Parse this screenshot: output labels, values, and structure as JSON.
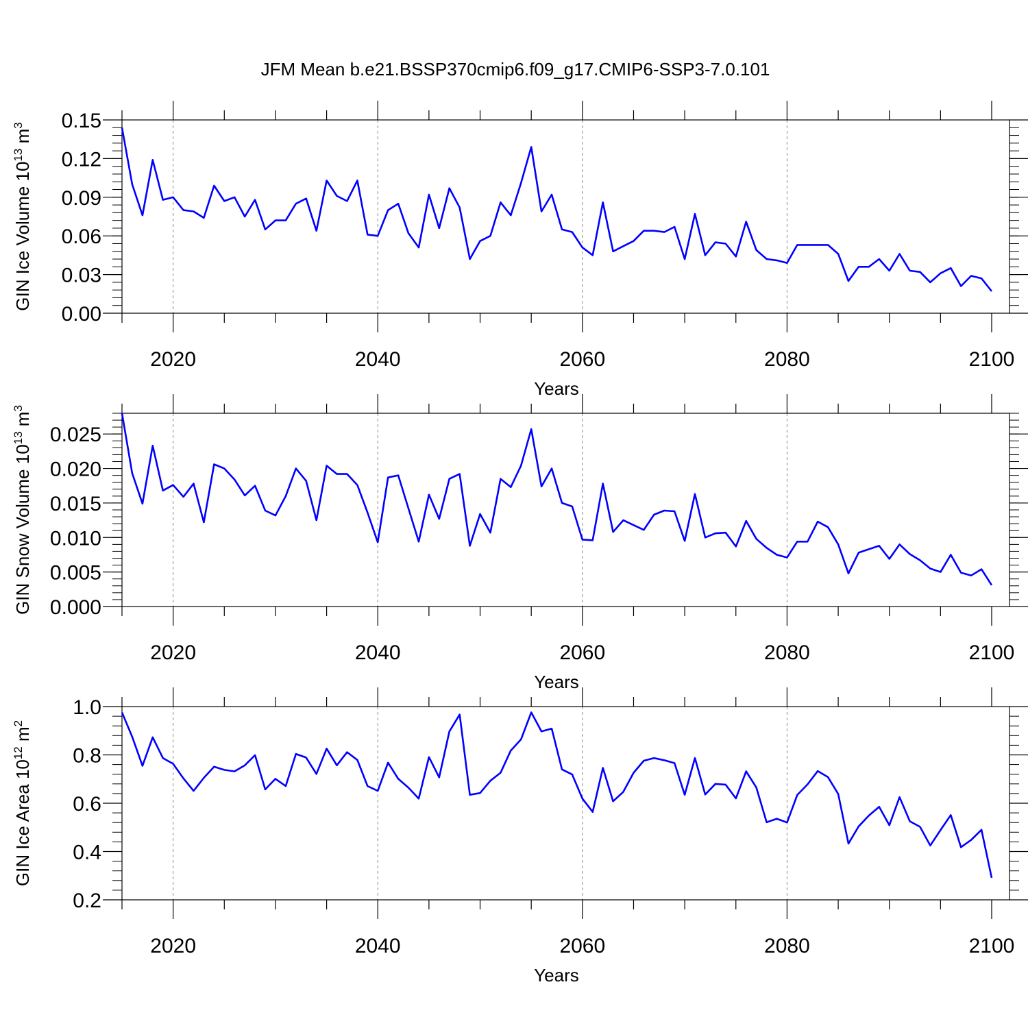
{
  "title": "JFM Mean b.e21.BSSP370cmip6.f09_g17.CMIP6-SSP3-7.0.101",
  "colors": {
    "line": "#0000ff",
    "axis": "#000000",
    "grid": "#888888"
  },
  "chart_data": [
    {
      "type": "line",
      "ylabel_main": "GIN Ice Volume 10",
      "ylabel_exp": "13",
      "ylabel_unit": "m",
      "ylabel_unit_exp": "3",
      "xlabel": "Years",
      "xlim": [
        2015,
        2100
      ],
      "ylim": [
        0.0,
        0.15
      ],
      "yticks": [
        0.0,
        0.03,
        0.06,
        0.09,
        0.12,
        0.15
      ],
      "ytick_labels": [
        "0.00",
        "0.03",
        "0.06",
        "0.09",
        "0.12",
        "0.15"
      ],
      "xticks": [
        2020,
        2040,
        2060,
        2080,
        2100
      ],
      "xtick_labels": [
        "2020",
        "2040",
        "2060",
        "2080",
        "2100"
      ],
      "grid_x": [
        2020,
        2040,
        2060,
        2080
      ],
      "x_start": 2015,
      "values": [
        0.144,
        0.1,
        0.076,
        0.119,
        0.088,
        0.09,
        0.08,
        0.079,
        0.074,
        0.099,
        0.087,
        0.09,
        0.075,
        0.088,
        0.065,
        0.072,
        0.072,
        0.085,
        0.089,
        0.064,
        0.103,
        0.091,
        0.087,
        0.103,
        0.061,
        0.06,
        0.08,
        0.085,
        0.062,
        0.051,
        0.092,
        0.066,
        0.097,
        0.082,
        0.042,
        0.056,
        0.06,
        0.086,
        0.076,
        0.101,
        0.129,
        0.079,
        0.092,
        0.065,
        0.063,
        0.051,
        0.045,
        0.086,
        0.048,
        0.052,
        0.056,
        0.064,
        0.064,
        0.063,
        0.067,
        0.042,
        0.077,
        0.045,
        0.055,
        0.054,
        0.044,
        0.071,
        0.049,
        0.042,
        0.041,
        0.039,
        0.053,
        0.053,
        0.053,
        0.053,
        0.046,
        0.025,
        0.036,
        0.036,
        0.042,
        0.033,
        0.046,
        0.033,
        0.032,
        0.024,
        0.031,
        0.035,
        0.021,
        0.029,
        0.027,
        0.017
      ]
    },
    {
      "type": "line",
      "ylabel_main": "GIN Snow Volume 10",
      "ylabel_exp": "13",
      "ylabel_unit": "m",
      "ylabel_unit_exp": "3",
      "xlabel": "Years",
      "xlim": [
        2015,
        2100
      ],
      "ylim": [
        0.0,
        0.028
      ],
      "yticks": [
        0.0,
        0.005,
        0.01,
        0.015,
        0.02,
        0.025
      ],
      "ytick_labels": [
        "0.000",
        "0.005",
        "0.010",
        "0.015",
        "0.020",
        "0.025"
      ],
      "xticks": [
        2020,
        2040,
        2060,
        2080,
        2100
      ],
      "xtick_labels": [
        "2020",
        "2040",
        "2060",
        "2080",
        "2100"
      ],
      "grid_x": [
        2020,
        2040,
        2060,
        2080
      ],
      "x_start": 2015,
      "values": [
        0.028,
        0.0193,
        0.0149,
        0.0233,
        0.0168,
        0.0176,
        0.0159,
        0.0178,
        0.0122,
        0.0206,
        0.02,
        0.0184,
        0.0161,
        0.0175,
        0.0139,
        0.0132,
        0.016,
        0.02,
        0.0182,
        0.0125,
        0.0204,
        0.0192,
        0.0192,
        0.0176,
        0.0136,
        0.0093,
        0.0187,
        0.019,
        0.0142,
        0.0094,
        0.0162,
        0.0127,
        0.0185,
        0.0192,
        0.0088,
        0.0134,
        0.0107,
        0.0185,
        0.0173,
        0.0204,
        0.0257,
        0.0174,
        0.02,
        0.015,
        0.0145,
        0.0097,
        0.0096,
        0.0178,
        0.0108,
        0.0125,
        0.0118,
        0.0111,
        0.0133,
        0.0139,
        0.0138,
        0.0095,
        0.0163,
        0.01,
        0.0106,
        0.0107,
        0.0087,
        0.0124,
        0.0098,
        0.0085,
        0.0075,
        0.0071,
        0.0094,
        0.0094,
        0.0123,
        0.0115,
        0.009,
        0.0048,
        0.0078,
        0.0083,
        0.0088,
        0.0069,
        0.009,
        0.0076,
        0.0067,
        0.0055,
        0.005,
        0.0075,
        0.0049,
        0.0045,
        0.0054,
        0.0031
      ]
    },
    {
      "type": "line",
      "ylabel_main": "GIN Ice Area 10",
      "ylabel_exp": "12",
      "ylabel_unit": "m",
      "ylabel_unit_exp": "2",
      "xlabel": "Years",
      "xlim": [
        2015,
        2100
      ],
      "ylim": [
        0.2,
        1.0
      ],
      "yticks": [
        0.2,
        0.4,
        0.6,
        0.8,
        1.0
      ],
      "ytick_labels": [
        "0.2",
        "0.4",
        "0.6",
        "0.8",
        "1.0"
      ],
      "xticks": [
        2020,
        2040,
        2060,
        2080,
        2100
      ],
      "xtick_labels": [
        "2020",
        "2040",
        "2060",
        "2080",
        "2100"
      ],
      "grid_x": [
        2020,
        2040,
        2060,
        2080
      ],
      "x_start": 2015,
      "values": [
        0.976,
        0.875,
        0.755,
        0.873,
        0.787,
        0.763,
        0.703,
        0.651,
        0.705,
        0.751,
        0.738,
        0.732,
        0.757,
        0.799,
        0.657,
        0.701,
        0.671,
        0.804,
        0.789,
        0.721,
        0.826,
        0.757,
        0.811,
        0.779,
        0.671,
        0.651,
        0.768,
        0.701,
        0.664,
        0.619,
        0.791,
        0.707,
        0.897,
        0.967,
        0.635,
        0.642,
        0.693,
        0.726,
        0.818,
        0.864,
        0.976,
        0.897,
        0.909,
        0.74,
        0.719,
        0.619,
        0.564,
        0.746,
        0.608,
        0.647,
        0.726,
        0.776,
        0.787,
        0.778,
        0.766,
        0.635,
        0.787,
        0.636,
        0.68,
        0.677,
        0.62,
        0.732,
        0.665,
        0.521,
        0.536,
        0.52,
        0.634,
        0.678,
        0.733,
        0.708,
        0.638,
        0.433,
        0.504,
        0.549,
        0.585,
        0.509,
        0.625,
        0.525,
        0.502,
        0.425,
        0.489,
        0.551,
        0.418,
        0.448,
        0.49,
        0.291
      ]
    }
  ]
}
